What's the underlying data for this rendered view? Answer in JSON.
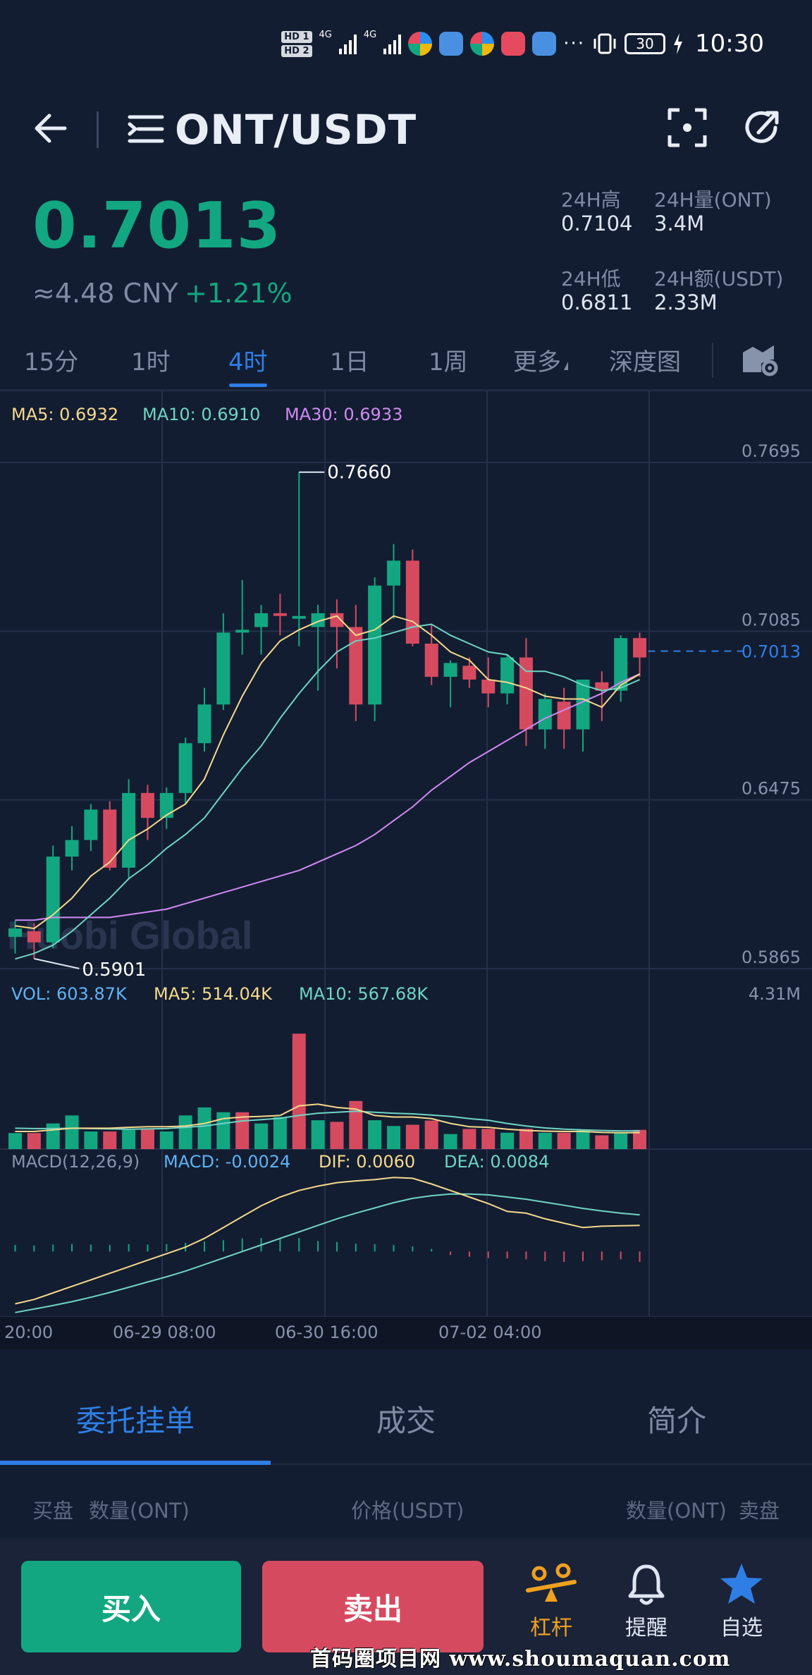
{
  "status_bar": {
    "time": "10:30",
    "battery": "30",
    "hd1": "HD 1",
    "hd2": "HD 2",
    "net1": "4G",
    "net2": "4G",
    "more": "···"
  },
  "header": {
    "title": "ONT/USDT",
    "icons": [
      "back-icon",
      "menu-icon",
      "scan-icon",
      "share-icon"
    ]
  },
  "ticker": {
    "last_price": "0.7013",
    "cny": "≈4.48 CNY",
    "change": "+1.21%",
    "high_label": "24H高",
    "high_value": "0.7104",
    "vol_label": "24H量(ONT)",
    "vol_value": "3.4M",
    "low_label": "24H低",
    "low_value": "0.6811",
    "amount_label": "24H额(USDT)",
    "amount_value": "2.33M",
    "up_color": "#12a781",
    "down_color": "#d64a60"
  },
  "periods": {
    "items": [
      "15分",
      "1时",
      "4时",
      "1日",
      "1周",
      "更多",
      "深度图"
    ],
    "active": "4时"
  },
  "indicators": {
    "ma5": "MA5: 0.6932",
    "ma10": "MA10: 0.6910",
    "ma30": "MA30: 0.6933",
    "vol": "VOL: 603.87K",
    "vol_ma5": "MA5: 514.04K",
    "vol_ma10": "MA10: 567.68K",
    "vol_max": "4.31M",
    "macd_title": "MACD(12,26,9)",
    "macd": "MACD: -0.0024",
    "dif": "DIF: 0.0060",
    "dea": "DEA: 0.0084",
    "watermark": "Huobi Global"
  },
  "chart_data": {
    "type": "candlestick",
    "ylim": [
      0.5865,
      0.7695
    ],
    "y_ticks": [
      "0.7695",
      "0.7085",
      "0.6475",
      "0.5865"
    ],
    "x_ticks": [
      "20:00",
      "06-29 08:00",
      "06-30 16:00",
      "07-02 04:00"
    ],
    "max_label": "0.7660",
    "min_label": "0.5901",
    "last_label": "0.7013",
    "last_price": 0.7013,
    "candles": [
      {
        "o": 0.598,
        "h": 0.604,
        "l": 0.592,
        "c": 0.601
      },
      {
        "o": 0.6,
        "h": 0.603,
        "l": 0.5901,
        "c": 0.596
      },
      {
        "o": 0.596,
        "h": 0.631,
        "l": 0.594,
        "c": 0.627
      },
      {
        "o": 0.627,
        "h": 0.638,
        "l": 0.622,
        "c": 0.633
      },
      {
        "o": 0.633,
        "h": 0.646,
        "l": 0.629,
        "c": 0.644
      },
      {
        "o": 0.644,
        "h": 0.647,
        "l": 0.622,
        "c": 0.623
      },
      {
        "o": 0.623,
        "h": 0.655,
        "l": 0.619,
        "c": 0.65
      },
      {
        "o": 0.65,
        "h": 0.653,
        "l": 0.633,
        "c": 0.641
      },
      {
        "o": 0.641,
        "h": 0.652,
        "l": 0.637,
        "c": 0.65
      },
      {
        "o": 0.65,
        "h": 0.67,
        "l": 0.646,
        "c": 0.668
      },
      {
        "o": 0.668,
        "h": 0.688,
        "l": 0.665,
        "c": 0.682
      },
      {
        "o": 0.682,
        "h": 0.715,
        "l": 0.68,
        "c": 0.708
      },
      {
        "o": 0.708,
        "h": 0.727,
        "l": 0.7,
        "c": 0.709
      },
      {
        "o": 0.71,
        "h": 0.718,
        "l": 0.7,
        "c": 0.715
      },
      {
        "o": 0.715,
        "h": 0.722,
        "l": 0.707,
        "c": 0.714
      },
      {
        "o": 0.713,
        "h": 0.766,
        "l": 0.703,
        "c": 0.714
      },
      {
        "o": 0.71,
        "h": 0.718,
        "l": 0.687,
        "c": 0.715
      },
      {
        "o": 0.715,
        "h": 0.72,
        "l": 0.695,
        "c": 0.71
      },
      {
        "o": 0.71,
        "h": 0.718,
        "l": 0.676,
        "c": 0.682
      },
      {
        "o": 0.682,
        "h": 0.728,
        "l": 0.676,
        "c": 0.725
      },
      {
        "o": 0.725,
        "h": 0.74,
        "l": 0.713,
        "c": 0.734
      },
      {
        "o": 0.734,
        "h": 0.738,
        "l": 0.703,
        "c": 0.704
      },
      {
        "o": 0.704,
        "h": 0.711,
        "l": 0.689,
        "c": 0.692
      },
      {
        "o": 0.692,
        "h": 0.698,
        "l": 0.681,
        "c": 0.697
      },
      {
        "o": 0.696,
        "h": 0.699,
        "l": 0.688,
        "c": 0.691
      },
      {
        "o": 0.691,
        "h": 0.699,
        "l": 0.681,
        "c": 0.686
      },
      {
        "o": 0.686,
        "h": 0.7,
        "l": 0.682,
        "c": 0.699
      },
      {
        "o": 0.699,
        "h": 0.706,
        "l": 0.667,
        "c": 0.673
      },
      {
        "o": 0.673,
        "h": 0.686,
        "l": 0.666,
        "c": 0.684
      },
      {
        "o": 0.683,
        "h": 0.688,
        "l": 0.666,
        "c": 0.673
      },
      {
        "o": 0.673,
        "h": 0.691,
        "l": 0.665,
        "c": 0.691
      },
      {
        "o": 0.69,
        "h": 0.694,
        "l": 0.676,
        "c": 0.687
      },
      {
        "o": 0.687,
        "h": 0.707,
        "l": 0.683,
        "c": 0.706
      },
      {
        "o": 0.706,
        "h": 0.708,
        "l": 0.692,
        "c": 0.699
      }
    ],
    "ma5": [
      0.602,
      0.601,
      0.606,
      0.612,
      0.62,
      0.625,
      0.633,
      0.637,
      0.642,
      0.646,
      0.655,
      0.671,
      0.685,
      0.697,
      0.705,
      0.709,
      0.712,
      0.714,
      0.707,
      0.709,
      0.714,
      0.712,
      0.707,
      0.701,
      0.698,
      0.691,
      0.69,
      0.688,
      0.685,
      0.684,
      0.684,
      0.681,
      0.689,
      0.693
    ],
    "ma10": [
      0.59,
      0.592,
      0.595,
      0.6,
      0.606,
      0.612,
      0.619,
      0.624,
      0.63,
      0.635,
      0.641,
      0.65,
      0.659,
      0.667,
      0.677,
      0.686,
      0.694,
      0.701,
      0.705,
      0.706,
      0.708,
      0.71,
      0.711,
      0.707,
      0.704,
      0.701,
      0.7,
      0.694,
      0.694,
      0.692,
      0.689,
      0.687,
      0.688,
      0.691
    ],
    "ma30": [
      0.604,
      0.604,
      0.605,
      0.605,
      0.605,
      0.605,
      0.606,
      0.607,
      0.608,
      0.61,
      0.612,
      0.614,
      0.616,
      0.618,
      0.62,
      0.622,
      0.625,
      0.628,
      0.631,
      0.635,
      0.64,
      0.645,
      0.651,
      0.656,
      0.661,
      0.665,
      0.669,
      0.673,
      0.677,
      0.68,
      0.683,
      0.686,
      0.69,
      0.693
    ],
    "volume": [
      {
        "v": 0.5,
        "up": true
      },
      {
        "v": 0.5,
        "up": false
      },
      {
        "v": 0.8,
        "up": true
      },
      {
        "v": 1.05,
        "up": true
      },
      {
        "v": 0.55,
        "up": true
      },
      {
        "v": 0.55,
        "up": false
      },
      {
        "v": 0.6,
        "up": true
      },
      {
        "v": 0.65,
        "up": false
      },
      {
        "v": 0.55,
        "up": true
      },
      {
        "v": 1.05,
        "up": true
      },
      {
        "v": 1.3,
        "up": true
      },
      {
        "v": 1.15,
        "up": true
      },
      {
        "v": 1.15,
        "up": false
      },
      {
        "v": 0.8,
        "up": true
      },
      {
        "v": 1.0,
        "up": true
      },
      {
        "v": 3.6,
        "up": false
      },
      {
        "v": 0.9,
        "up": true
      },
      {
        "v": 0.85,
        "up": false
      },
      {
        "v": 1.5,
        "up": false
      },
      {
        "v": 0.9,
        "up": true
      },
      {
        "v": 0.72,
        "up": true
      },
      {
        "v": 0.76,
        "up": false
      },
      {
        "v": 0.89,
        "up": false
      },
      {
        "v": 0.47,
        "up": true
      },
      {
        "v": 0.63,
        "up": false
      },
      {
        "v": 0.63,
        "up": false
      },
      {
        "v": 0.51,
        "up": true
      },
      {
        "v": 0.63,
        "up": false
      },
      {
        "v": 0.51,
        "up": true
      },
      {
        "v": 0.51,
        "up": false
      },
      {
        "v": 0.6,
        "up": true
      },
      {
        "v": 0.43,
        "up": false
      },
      {
        "v": 0.51,
        "up": true
      },
      {
        "v": 0.6,
        "up": false
      }
    ],
    "vol_ma5": [
      0.55,
      0.55,
      0.6,
      0.65,
      0.65,
      0.65,
      0.68,
      0.7,
      0.7,
      0.72,
      0.8,
      0.95,
      1.0,
      1.02,
      1.05,
      1.35,
      1.4,
      1.3,
      1.25,
      1.05,
      1.0,
      1.0,
      0.95,
      0.8,
      0.7,
      0.68,
      0.62,
      0.58,
      0.56,
      0.55,
      0.55,
      0.52,
      0.51,
      0.51
    ],
    "vol_ma10": [
      0.65,
      0.64,
      0.64,
      0.65,
      0.64,
      0.63,
      0.62,
      0.63,
      0.64,
      0.68,
      0.72,
      0.8,
      0.88,
      0.92,
      0.96,
      1.05,
      1.12,
      1.15,
      1.18,
      1.15,
      1.12,
      1.1,
      1.06,
      1.02,
      0.95,
      0.9,
      0.8,
      0.72,
      0.66,
      0.62,
      0.6,
      0.58,
      0.57,
      0.57
    ],
    "macd_hist": [
      0.0015,
      0.0014,
      0.0016,
      0.0017,
      0.0016,
      0.0015,
      0.0017,
      0.0016,
      0.0017,
      0.002,
      0.0023,
      0.0026,
      0.003,
      0.0031,
      0.003,
      0.0031,
      0.0024,
      0.0022,
      0.0018,
      0.0017,
      0.0015,
      0.0012,
      0.0006,
      -0.0008,
      -0.0012,
      -0.0015,
      -0.0016,
      -0.0018,
      -0.0022,
      -0.0024,
      -0.0022,
      -0.002,
      -0.0018,
      -0.0024
    ],
    "dif": [
      -0.012,
      -0.011,
      -0.0095,
      -0.008,
      -0.0065,
      -0.005,
      -0.0035,
      -0.002,
      -0.0005,
      0.001,
      0.003,
      0.0055,
      0.008,
      0.0105,
      0.0125,
      0.014,
      0.015,
      0.0158,
      0.0162,
      0.0165,
      0.017,
      0.0168,
      0.0155,
      0.014,
      0.0125,
      0.011,
      0.0092,
      0.0088,
      0.0075,
      0.0065,
      0.0055,
      0.0058,
      0.0059,
      0.006
    ],
    "dea": [
      -0.014,
      -0.0132,
      -0.0124,
      -0.0115,
      -0.0105,
      -0.0094,
      -0.0082,
      -0.007,
      -0.0058,
      -0.0045,
      -0.003,
      -0.0015,
      0.0,
      0.0015,
      0.003,
      0.0045,
      0.006,
      0.0075,
      0.0088,
      0.01,
      0.0112,
      0.0122,
      0.0128,
      0.0132,
      0.0132,
      0.013,
      0.0125,
      0.012,
      0.0113,
      0.0106,
      0.0099,
      0.0093,
      0.0088,
      0.0084
    ],
    "macd_range": [
      -0.015,
      0.018
    ],
    "vol_range_m": [
      0,
      4.31
    ]
  },
  "panel": {
    "tabs": [
      "委托挂单",
      "成交",
      "简介"
    ],
    "active_tab": "委托挂单",
    "orderbook_head": {
      "buy": "买盘",
      "buy_qty": "数量(ONT)",
      "price": "价格(USDT)",
      "sell_qty": "数量(ONT)",
      "sell": "卖盘"
    }
  },
  "bottom_bar": {
    "buy": "买入",
    "sell": "卖出",
    "leverage": "杠杆",
    "alert": "提醒",
    "favorite": "自选",
    "buy_color": "#12a781",
    "sell_color": "#d64a60"
  },
  "watermark_footer": "首码圈项目网 www.shoumaquan.com"
}
